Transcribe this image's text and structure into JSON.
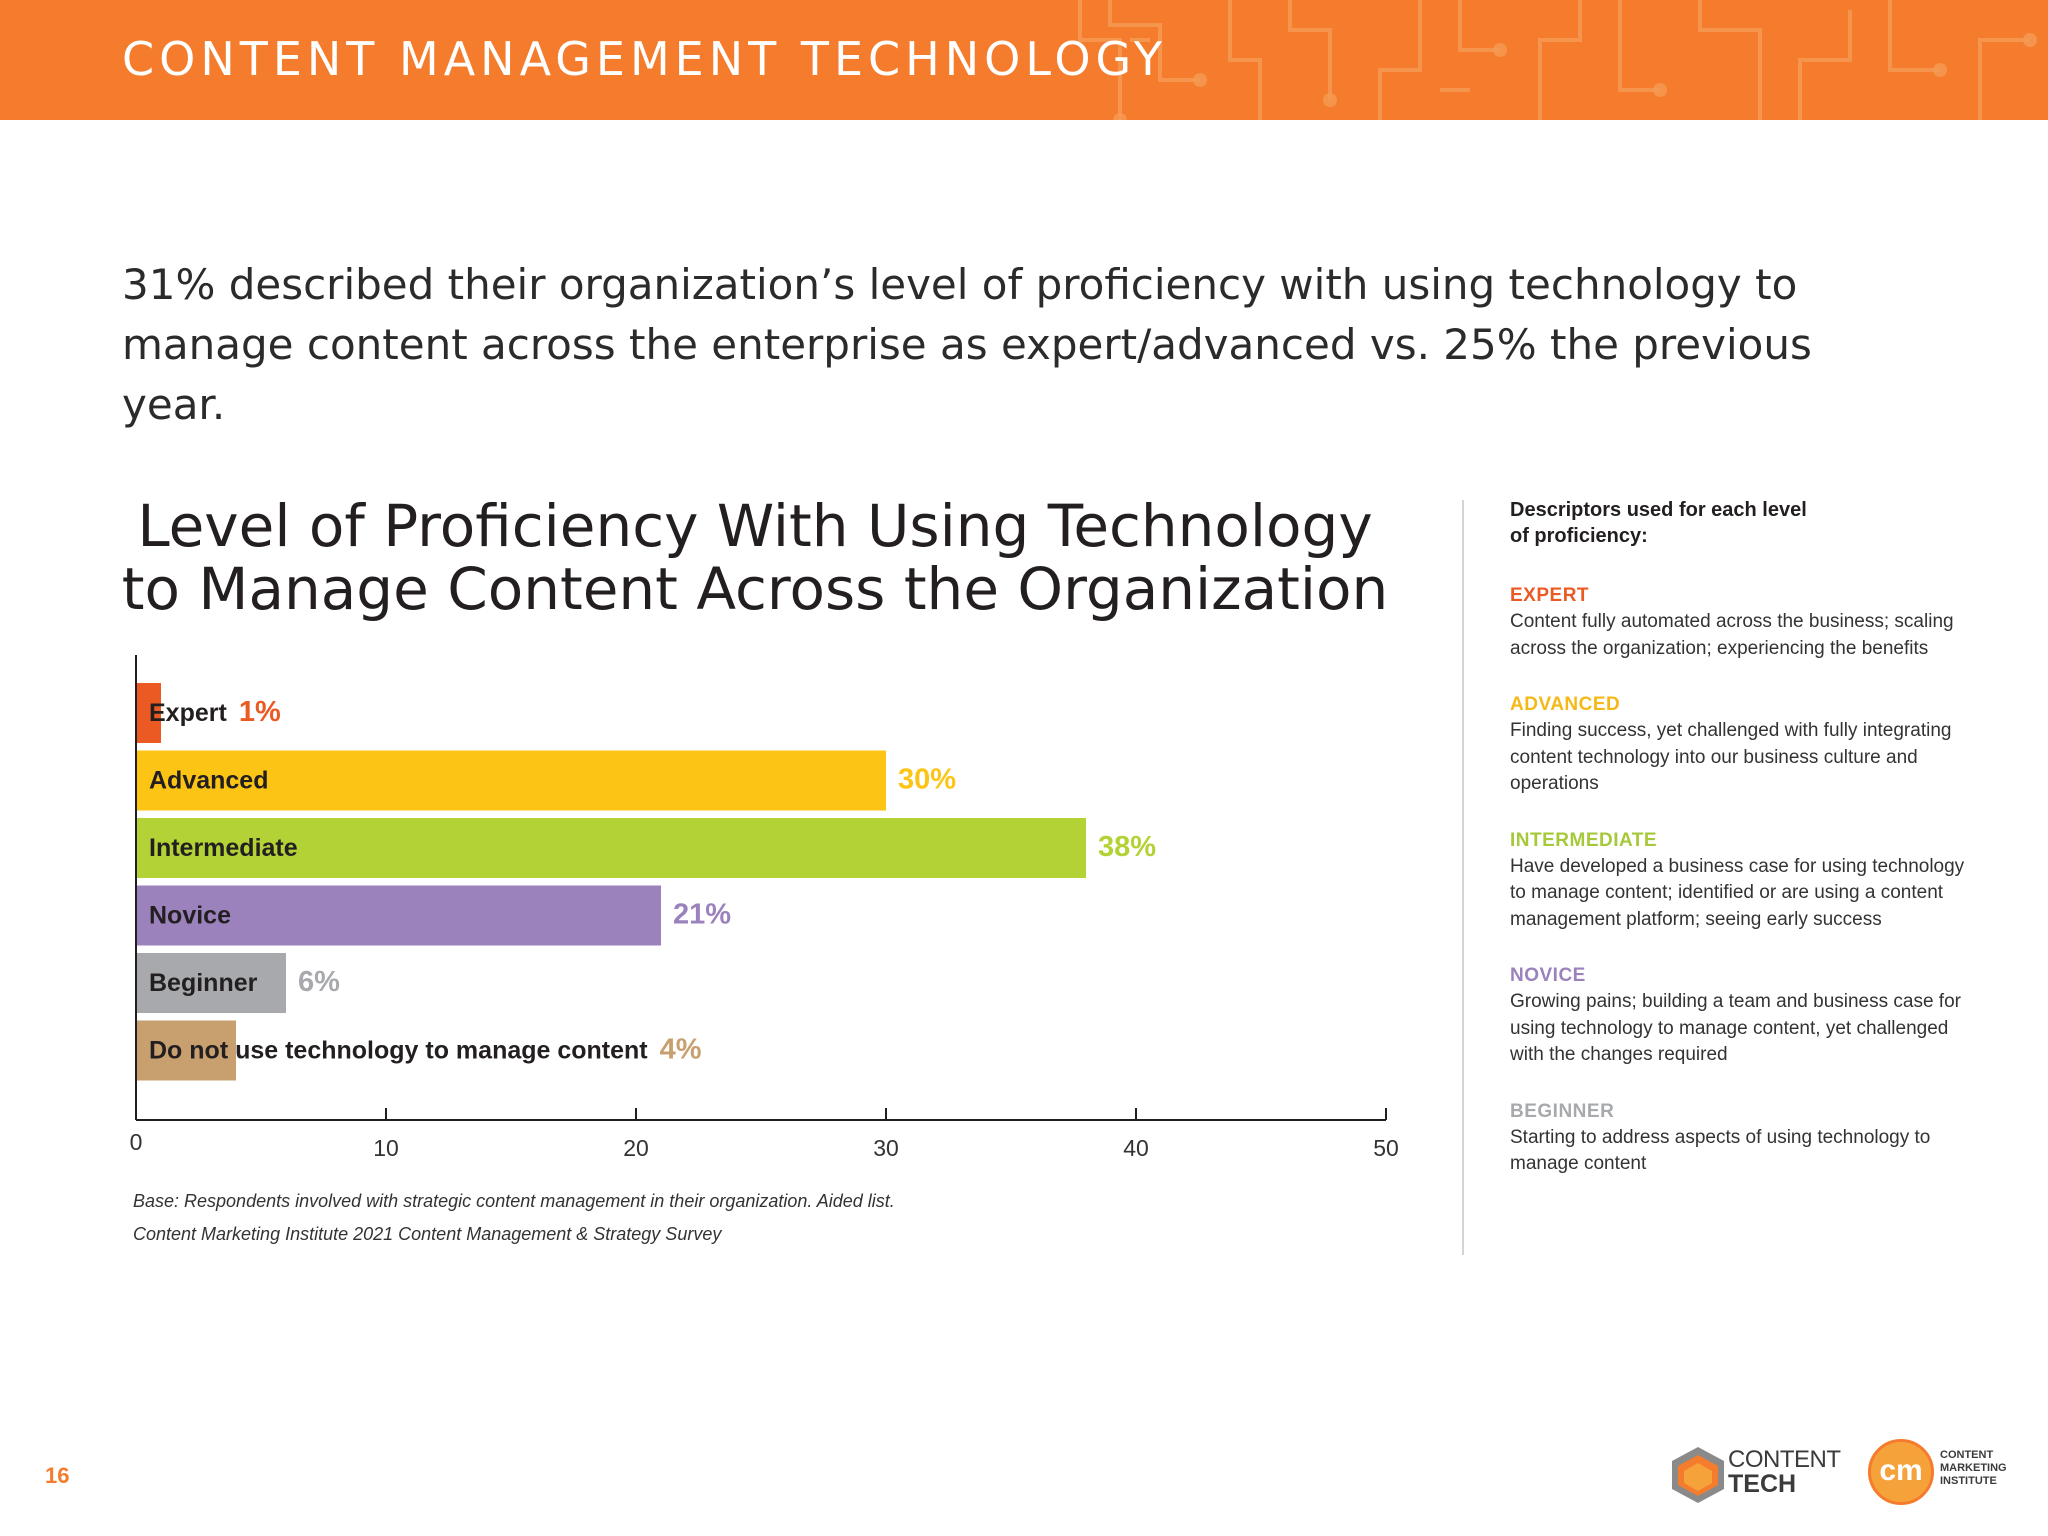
{
  "header": {
    "title": "CONTENT MANAGEMENT TECHNOLOGY",
    "background": "#f47c2c"
  },
  "lead": "31% described their organization’s level of proficiency with using technology to manage content across the enterprise as expert/advanced vs. 25% the previous year.",
  "chart_data": {
    "type": "bar",
    "orientation": "horizontal",
    "title": "Level of Proficiency With Using Technology to Manage Content Across the Organization",
    "categories": [
      "Expert",
      "Advanced",
      "Intermediate",
      "Novice",
      "Beginner",
      "Do not use technology to manage content"
    ],
    "values": [
      1,
      30,
      38,
      21,
      6,
      4
    ],
    "value_labels": [
      "1%",
      "30%",
      "38%",
      "21%",
      "6%",
      "4%"
    ],
    "colors": [
      "#ec5a24",
      "#fcc515",
      "#b2d235",
      "#9b82bd",
      "#a7a9ac",
      "#c8a070"
    ],
    "xlim": [
      0,
      50
    ],
    "xticks": [
      0,
      10,
      20,
      30,
      40,
      50
    ],
    "grid": false
  },
  "notes": {
    "base": "Base: Respondents involved with strategic content management in their organization. Aided list.",
    "source": "Content Marketing Institute 2021 Content Management & Strategy Survey"
  },
  "descriptors": {
    "heading_line1": "Descriptors used for each level",
    "heading_line2": "of proficiency:",
    "items": [
      {
        "label": "EXPERT",
        "color": "#ec5a24",
        "text": "Content fully automated across the business; scaling across the organization; experiencing the benefits"
      },
      {
        "label": "ADVANCED",
        "color": "#f4b916",
        "text": "Finding success, yet challenged with fully integrating content technology into our business culture and operations"
      },
      {
        "label": "INTERMEDIATE",
        "color": "#a6c93a",
        "text": "Have developed a business case for using technology to manage content; identified or are using a content management platform; seeing early success"
      },
      {
        "label": "NOVICE",
        "color": "#9b82bd",
        "text": "Growing pains; building a team and business case for using technology to manage content, yet challenged with the changes required"
      },
      {
        "label": "BEGINNER",
        "color": "#a7a9ac",
        "text": "Starting to address aspects of using technology to manage content"
      }
    ]
  },
  "footer": {
    "page_number": "16",
    "logo_ct_line1": "CONTENT",
    "logo_ct_line2": "TECH",
    "logo_cmi_mark": "cm",
    "logo_cmi_line1": "CONTENT",
    "logo_cmi_line2": "MARKETING",
    "logo_cmi_line3": "INSTITUTE"
  }
}
